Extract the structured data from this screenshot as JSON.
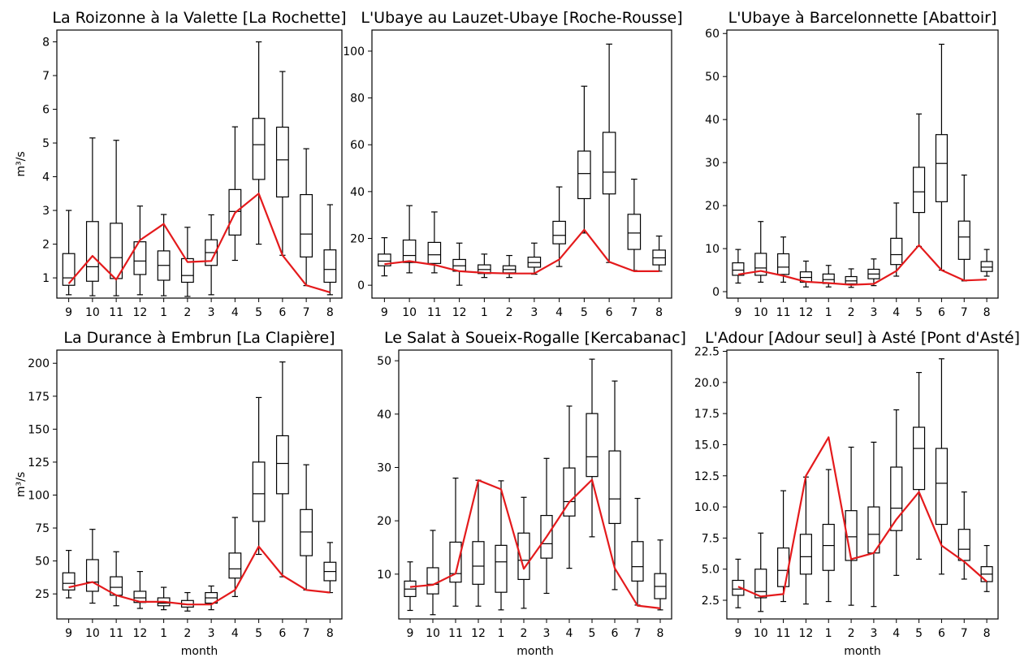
{
  "shared": {
    "xlabel": "month",
    "ylabel": "m³/s"
  },
  "chart_data": [
    {
      "type": "box",
      "title": "La Roizonne à la Valette [La Rochette]",
      "xlabel": "",
      "ylabel": "m³/s",
      "categories": [
        "9",
        "10",
        "11",
        "12",
        "1",
        "2",
        "3",
        "4",
        "5",
        "6",
        "7",
        "8"
      ],
      "ylim": [
        0.4,
        8.35
      ],
      "yticks": [
        1,
        2,
        3,
        4,
        5,
        6,
        7,
        8
      ],
      "boxes": [
        {
          "whislo": 0.5,
          "q1": 0.78,
          "med": 1.0,
          "q3": 1.72,
          "whishi": 3.0
        },
        {
          "whislo": 0.47,
          "q1": 0.9,
          "med": 1.33,
          "q3": 2.67,
          "whishi": 5.15
        },
        {
          "whislo": 0.47,
          "q1": 0.98,
          "med": 1.6,
          "q3": 2.62,
          "whishi": 5.08
        },
        {
          "whislo": 0.5,
          "q1": 1.1,
          "med": 1.5,
          "q3": 2.07,
          "whishi": 3.13
        },
        {
          "whislo": 0.47,
          "q1": 0.93,
          "med": 1.37,
          "q3": 1.8,
          "whishi": 2.88
        },
        {
          "whislo": 0.45,
          "q1": 0.87,
          "med": 1.07,
          "q3": 1.57,
          "whishi": 2.5
        },
        {
          "whislo": 0.5,
          "q1": 1.37,
          "med": 1.75,
          "q3": 2.13,
          "whishi": 2.87
        },
        {
          "whislo": 1.52,
          "q1": 2.27,
          "med": 2.97,
          "q3": 3.62,
          "whishi": 5.48
        },
        {
          "whislo": 2.0,
          "q1": 3.92,
          "med": 4.95,
          "q3": 5.73,
          "whishi": 8.0
        },
        {
          "whislo": 1.67,
          "q1": 3.4,
          "med": 4.5,
          "q3": 5.47,
          "whishi": 7.12
        },
        {
          "whislo": 0.77,
          "q1": 1.62,
          "med": 2.3,
          "q3": 3.47,
          "whishi": 4.83
        },
        {
          "whislo": 0.5,
          "q1": 0.87,
          "med": 1.25,
          "q3": 1.83,
          "whishi": 3.17
        }
      ],
      "line": {
        "color": "#e41a1c",
        "values": [
          0.83,
          1.65,
          0.95,
          2.12,
          2.6,
          1.47,
          1.5,
          2.93,
          3.5,
          1.67,
          0.78,
          0.57
        ]
      }
    },
    {
      "type": "box",
      "title": "L'Ubaye au Lauzet-Ubaye [Roche-Rousse]",
      "xlabel": "",
      "ylabel": "",
      "categories": [
        "9",
        "10",
        "11",
        "12",
        "1",
        "2",
        "3",
        "4",
        "5",
        "6",
        "7",
        "8"
      ],
      "ylim": [
        -5.5,
        109
      ],
      "yticks": [
        0,
        20,
        40,
        60,
        80,
        100
      ],
      "boxes": [
        {
          "whislo": 4,
          "q1": 8.3,
          "med": 10.3,
          "q3": 13.3,
          "whishi": 20.3
        },
        {
          "whislo": 5.3,
          "q1": 9.7,
          "med": 12.7,
          "q3": 19.3,
          "whishi": 34
        },
        {
          "whislo": 5.3,
          "q1": 9.3,
          "med": 13,
          "q3": 18.3,
          "whishi": 31.3
        },
        {
          "whislo": 0,
          "q1": 6,
          "med": 8.3,
          "q3": 11,
          "whishi": 18
        },
        {
          "whislo": 3.3,
          "q1": 5,
          "med": 6.7,
          "q3": 8.7,
          "whishi": 13.3
        },
        {
          "whislo": 3.3,
          "q1": 5.3,
          "med": 6.7,
          "q3": 8.3,
          "whishi": 12.7
        },
        {
          "whislo": 4.7,
          "q1": 7.7,
          "med": 9.7,
          "q3": 12,
          "whishi": 18
        },
        {
          "whislo": 8,
          "q1": 17.7,
          "med": 21.3,
          "q3": 27.3,
          "whishi": 42
        },
        {
          "whislo": 22.3,
          "q1": 37,
          "med": 47.7,
          "q3": 57.3,
          "whishi": 85
        },
        {
          "whislo": 9.7,
          "q1": 39,
          "med": 48.3,
          "q3": 65.3,
          "whishi": 103
        },
        {
          "whislo": 6.3,
          "q1": 15.3,
          "med": 22.3,
          "q3": 30.3,
          "whishi": 45.3
        },
        {
          "whislo": 6,
          "q1": 8.7,
          "med": 11.7,
          "q3": 15,
          "whishi": 21
        }
      ],
      "line": {
        "color": "#e41a1c",
        "values": [
          9,
          10.3,
          8.7,
          6,
          5.3,
          5,
          5,
          11,
          23.7,
          10,
          6,
          6
        ]
      }
    },
    {
      "type": "box",
      "title": "L'Ubaye à Barcelonnette [Abattoir]",
      "xlabel": "",
      "ylabel": "",
      "categories": [
        "9",
        "10",
        "11",
        "12",
        "1",
        "2",
        "3",
        "4",
        "5",
        "6",
        "7",
        "8"
      ],
      "ylim": [
        -1.5,
        60.8
      ],
      "yticks": [
        0,
        10,
        20,
        30,
        40,
        50,
        60
      ],
      "boxes": [
        {
          "whislo": 2,
          "q1": 3.8,
          "med": 5,
          "q3": 6.7,
          "whishi": 9.8
        },
        {
          "whislo": 2.2,
          "q1": 3.8,
          "med": 5.5,
          "q3": 8.9,
          "whishi": 16.3
        },
        {
          "whislo": 2.2,
          "q1": 4,
          "med": 5.7,
          "q3": 8.8,
          "whishi": 12.7
        },
        {
          "whislo": 1.1,
          "q1": 2.2,
          "med": 3.3,
          "q3": 4.6,
          "whishi": 7.1
        },
        {
          "whislo": 1.1,
          "q1": 1.9,
          "med": 2.8,
          "q3": 4.1,
          "whishi": 6.1
        },
        {
          "whislo": 1,
          "q1": 1.8,
          "med": 2.5,
          "q3": 3.5,
          "whishi": 5.3
        },
        {
          "whislo": 1.4,
          "q1": 3,
          "med": 4.1,
          "q3": 5.2,
          "whishi": 7.6
        },
        {
          "whislo": 3.6,
          "q1": 6.3,
          "med": 8.6,
          "q3": 12.4,
          "whishi": 20.6
        },
        {
          "whislo": 10.5,
          "q1": 18.4,
          "med": 23.2,
          "q3": 28.9,
          "whishi": 41.3
        },
        {
          "whislo": 5,
          "q1": 20.9,
          "med": 29.8,
          "q3": 36.5,
          "whishi": 57.5
        },
        {
          "whislo": 2.5,
          "q1": 7.5,
          "med": 12.7,
          "q3": 16.4,
          "whishi": 27.1
        },
        {
          "whislo": 3.6,
          "q1": 4.7,
          "med": 5.7,
          "q3": 7,
          "whishi": 9.8
        }
      ],
      "line": {
        "color": "#e41a1c",
        "values": [
          4,
          4.8,
          3.7,
          2.3,
          2,
          1.6,
          1.8,
          4.8,
          10.8,
          5,
          2.6,
          2.8
        ]
      }
    },
    {
      "type": "box",
      "title": "La Durance à Embrun [La Clapière]",
      "xlabel": "month",
      "ylabel": "m³/s",
      "categories": [
        "9",
        "10",
        "11",
        "12",
        "1",
        "2",
        "3",
        "4",
        "5",
        "6",
        "7",
        "8"
      ],
      "ylim": [
        6,
        210
      ],
      "yticks": [
        25,
        50,
        75,
        100,
        125,
        150,
        175,
        200
      ],
      "boxes": [
        {
          "whislo": 22,
          "q1": 28,
          "med": 33,
          "q3": 41,
          "whishi": 58
        },
        {
          "whislo": 18,
          "q1": 27,
          "med": 34,
          "q3": 51,
          "whishi": 74
        },
        {
          "whislo": 16,
          "q1": 24,
          "med": 30,
          "q3": 38,
          "whishi": 57
        },
        {
          "whislo": 14,
          "q1": 18.5,
          "med": 22,
          "q3": 27,
          "whishi": 42
        },
        {
          "whislo": 13,
          "q1": 16,
          "med": 18,
          "q3": 22,
          "whishi": 30
        },
        {
          "whislo": 12,
          "q1": 15,
          "med": 17,
          "q3": 20,
          "whishi": 26
        },
        {
          "whislo": 13,
          "q1": 18,
          "med": 22,
          "q3": 26,
          "whishi": 31
        },
        {
          "whislo": 23,
          "q1": 37,
          "med": 44,
          "q3": 56,
          "whishi": 83
        },
        {
          "whislo": 55,
          "q1": 80,
          "med": 101,
          "q3": 125,
          "whishi": 174
        },
        {
          "whislo": 38,
          "q1": 101,
          "med": 124,
          "q3": 145,
          "whishi": 201
        },
        {
          "whislo": 28,
          "q1": 54,
          "med": 72,
          "q3": 89,
          "whishi": 123
        },
        {
          "whislo": 26,
          "q1": 35,
          "med": 42,
          "q3": 49,
          "whishi": 64
        }
      ],
      "line": {
        "color": "#e41a1c",
        "values": [
          30,
          34,
          24,
          19,
          19,
          17,
          17,
          28,
          61,
          39,
          28,
          26
        ]
      }
    },
    {
      "type": "box",
      "title": "Le Salat à Soueix-Rogalle [Kercabanac]",
      "xlabel": "month",
      "ylabel": "",
      "categories": [
        "9",
        "10",
        "11",
        "12",
        "1",
        "2",
        "3",
        "4",
        "5",
        "6",
        "7",
        "8"
      ],
      "ylim": [
        1.6,
        52
      ],
      "yticks": [
        10,
        20,
        30,
        40,
        50
      ],
      "boxes": [
        {
          "whislo": 3.2,
          "q1": 5.8,
          "med": 7.2,
          "q3": 8.7,
          "whishi": 12.3
        },
        {
          "whislo": 2.4,
          "q1": 6.3,
          "med": 8.1,
          "q3": 11.2,
          "whishi": 18.2
        },
        {
          "whislo": 4,
          "q1": 8.5,
          "med": 10.1,
          "q3": 16,
          "whishi": 28
        },
        {
          "whislo": 4,
          "q1": 8.1,
          "med": 11.5,
          "q3": 16.1,
          "whishi": 27.6
        },
        {
          "whislo": 3.3,
          "q1": 6.6,
          "med": 12.3,
          "q3": 15.4,
          "whishi": 27.5
        },
        {
          "whislo": 3.6,
          "q1": 9,
          "med": 12.6,
          "q3": 17.7,
          "whishi": 24.4
        },
        {
          "whislo": 6.4,
          "q1": 13,
          "med": 15.7,
          "q3": 21,
          "whishi": 31.7
        },
        {
          "whislo": 11.1,
          "q1": 20.9,
          "med": 23.6,
          "q3": 29.9,
          "whishi": 41.5
        },
        {
          "whislo": 17,
          "q1": 28.3,
          "med": 32,
          "q3": 40.1,
          "whishi": 50.3
        },
        {
          "whislo": 7.1,
          "q1": 19.5,
          "med": 24.1,
          "q3": 33.1,
          "whishi": 46.2
        },
        {
          "whislo": 4.2,
          "q1": 8.7,
          "med": 11.4,
          "q3": 16.1,
          "whishi": 24.2
        },
        {
          "whislo": 3.3,
          "q1": 5.4,
          "med": 7.7,
          "q3": 10.1,
          "whishi": 16.4
        }
      ],
      "line": {
        "color": "#e41a1c",
        "values": [
          7.6,
          8,
          10.1,
          27.6,
          25.9,
          11,
          17,
          23.5,
          27.7,
          11.1,
          4.1,
          3.6
        ]
      }
    },
    {
      "type": "box",
      "title": "L'Adour [Adour seul] à Asté [Pont d'Asté]",
      "xlabel": "month",
      "ylabel": "",
      "categories": [
        "9",
        "10",
        "11",
        "12",
        "1",
        "2",
        "3",
        "4",
        "5",
        "6",
        "7",
        "8"
      ],
      "ylim": [
        1.0,
        22.6
      ],
      "yticks": [
        2.5,
        5.0,
        7.5,
        10.0,
        12.5,
        15.0,
        17.5,
        20.0,
        22.5
      ],
      "boxes": [
        {
          "whislo": 1.9,
          "q1": 2.9,
          "med": 3.4,
          "q3": 4.1,
          "whishi": 5.8
        },
        {
          "whislo": 1.6,
          "q1": 2.7,
          "med": 3.2,
          "q3": 5,
          "whishi": 7.9
        },
        {
          "whislo": 2.4,
          "q1": 3.6,
          "med": 4.9,
          "q3": 6.7,
          "whishi": 11.3
        },
        {
          "whislo": 2.2,
          "q1": 4.6,
          "med": 6,
          "q3": 7.8,
          "whishi": 12.4
        },
        {
          "whislo": 2.4,
          "q1": 4.9,
          "med": 6.9,
          "q3": 8.6,
          "whishi": 13
        },
        {
          "whislo": 2.1,
          "q1": 5.7,
          "med": 7.6,
          "q3": 9.7,
          "whishi": 14.8
        },
        {
          "whislo": 2,
          "q1": 6.3,
          "med": 7.8,
          "q3": 10,
          "whishi": 15.2
        },
        {
          "whislo": 4.5,
          "q1": 8.1,
          "med": 9.9,
          "q3": 13.2,
          "whishi": 17.8
        },
        {
          "whislo": 5.8,
          "q1": 11.4,
          "med": 14.7,
          "q3": 16.4,
          "whishi": 20.8
        },
        {
          "whislo": 4.6,
          "q1": 8.6,
          "med": 11.9,
          "q3": 14.7,
          "whishi": 21.9
        },
        {
          "whislo": 4.2,
          "q1": 5.7,
          "med": 6.6,
          "q3": 8.2,
          "whishi": 11.2
        },
        {
          "whislo": 3.2,
          "q1": 4,
          "med": 4.6,
          "q3": 5.2,
          "whishi": 6.9
        }
      ],
      "line": {
        "color": "#e41a1c",
        "values": [
          3.6,
          2.8,
          3,
          12.5,
          15.6,
          5.8,
          6.3,
          9,
          11.2,
          6.9,
          5.6,
          4
        ]
      }
    }
  ]
}
